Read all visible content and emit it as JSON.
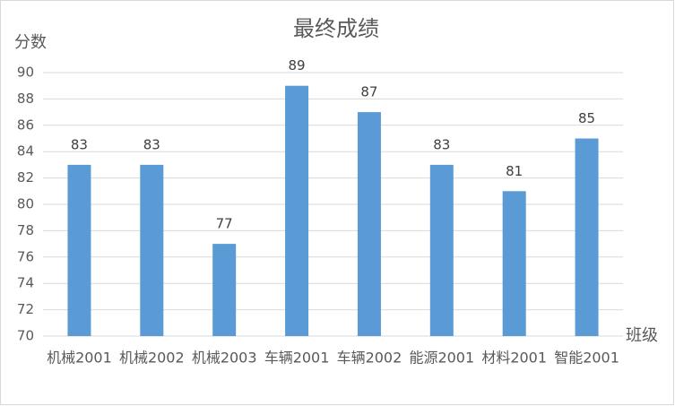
{
  "chart_data": {
    "type": "bar",
    "title": "最终成绩",
    "y_label": "分数",
    "x_label": "班级",
    "categories": [
      "机械2001",
      "机械2002",
      "机械2003",
      "车辆2001",
      "车辆2002",
      "能源2001",
      "材料2001",
      "智能2001"
    ],
    "values": [
      83,
      83,
      77,
      89,
      87,
      83,
      81,
      85
    ],
    "color": "#5b9bd5",
    "ylim": [
      70,
      90
    ],
    "yticks": [
      70,
      72,
      74,
      76,
      78,
      80,
      82,
      84,
      86,
      88,
      90
    ],
    "grid": true
  }
}
